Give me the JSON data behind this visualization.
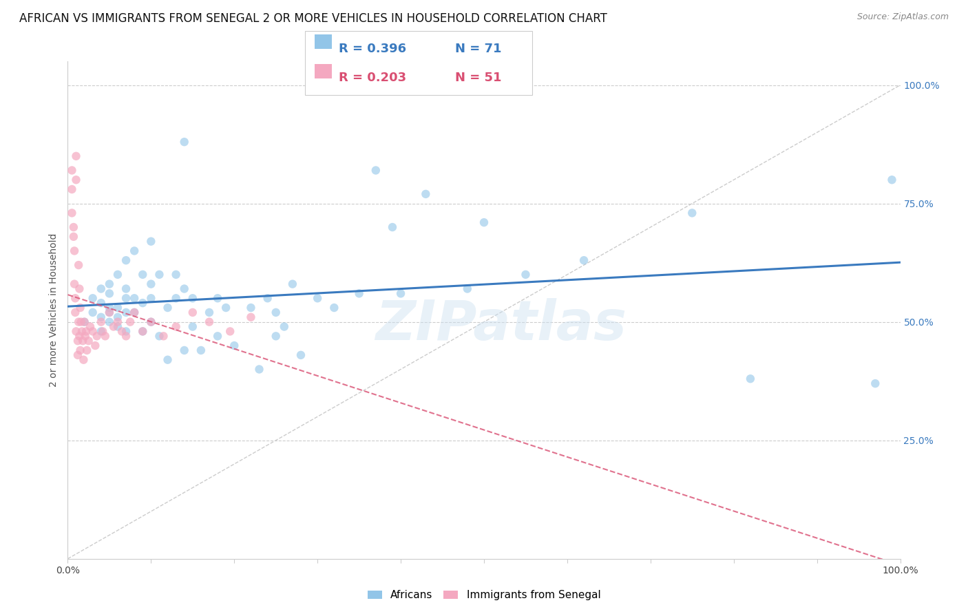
{
  "title": "AFRICAN VS IMMIGRANTS FROM SENEGAL 2 OR MORE VEHICLES IN HOUSEHOLD CORRELATION CHART",
  "source": "Source: ZipAtlas.com",
  "ylabel": "2 or more Vehicles in Household",
  "legend_blue_r": "R = 0.396",
  "legend_blue_n": "N = 71",
  "legend_pink_r": "R = 0.203",
  "legend_pink_n": "N = 51",
  "blue_color": "#92c5e8",
  "pink_color": "#f4a8c0",
  "line_blue_color": "#3a7abf",
  "line_pink_color": "#d94f72",
  "diagonal_color": "#cccccc",
  "watermark": "ZIPatlas",
  "legend_label_blue": "Africans",
  "legend_label_pink": "Immigrants from Senegal",
  "grid_color": "#cccccc",
  "background_color": "#ffffff",
  "title_fontsize": 12,
  "axis_label_fontsize": 10,
  "tick_fontsize": 10,
  "right_tick_color": "#3a7abf",
  "africans_x": [
    0.97,
    0.99,
    0.82,
    0.75,
    0.62,
    0.5,
    0.43,
    0.37,
    0.35,
    0.32,
    0.3,
    0.28,
    0.27,
    0.26,
    0.25,
    0.25,
    0.24,
    0.23,
    0.22,
    0.2,
    0.19,
    0.18,
    0.18,
    0.17,
    0.16,
    0.15,
    0.15,
    0.14,
    0.14,
    0.13,
    0.13,
    0.12,
    0.12,
    0.11,
    0.11,
    0.1,
    0.1,
    0.1,
    0.1,
    0.09,
    0.09,
    0.09,
    0.08,
    0.08,
    0.08,
    0.07,
    0.07,
    0.07,
    0.07,
    0.07,
    0.06,
    0.06,
    0.06,
    0.06,
    0.05,
    0.05,
    0.05,
    0.05,
    0.05,
    0.04,
    0.04,
    0.04,
    0.04,
    0.03,
    0.03,
    0.02,
    0.39,
    0.4,
    0.48,
    0.55,
    0.14
  ],
  "africans_y": [
    0.37,
    0.8,
    0.38,
    0.73,
    0.63,
    0.71,
    0.77,
    0.82,
    0.56,
    0.53,
    0.55,
    0.43,
    0.58,
    0.49,
    0.47,
    0.52,
    0.55,
    0.4,
    0.53,
    0.45,
    0.53,
    0.55,
    0.47,
    0.52,
    0.44,
    0.49,
    0.55,
    0.44,
    0.57,
    0.55,
    0.6,
    0.42,
    0.53,
    0.47,
    0.6,
    0.5,
    0.55,
    0.58,
    0.67,
    0.48,
    0.54,
    0.6,
    0.52,
    0.55,
    0.65,
    0.48,
    0.52,
    0.55,
    0.57,
    0.63,
    0.49,
    0.51,
    0.53,
    0.6,
    0.5,
    0.52,
    0.53,
    0.56,
    0.58,
    0.48,
    0.51,
    0.54,
    0.57,
    0.52,
    0.55,
    0.5,
    0.7,
    0.56,
    0.57,
    0.6,
    0.88
  ],
  "senegal_x": [
    0.005,
    0.005,
    0.005,
    0.007,
    0.007,
    0.008,
    0.008,
    0.009,
    0.009,
    0.01,
    0.01,
    0.01,
    0.012,
    0.012,
    0.013,
    0.013,
    0.014,
    0.014,
    0.015,
    0.015,
    0.016,
    0.017,
    0.018,
    0.019,
    0.02,
    0.021,
    0.022,
    0.023,
    0.025,
    0.027,
    0.03,
    0.033,
    0.035,
    0.04,
    0.042,
    0.045,
    0.05,
    0.055,
    0.06,
    0.065,
    0.07,
    0.075,
    0.08,
    0.09,
    0.1,
    0.115,
    0.13,
    0.15,
    0.17,
    0.195,
    0.22
  ],
  "senegal_y": [
    0.82,
    0.78,
    0.73,
    0.7,
    0.68,
    0.65,
    0.58,
    0.55,
    0.52,
    0.85,
    0.8,
    0.48,
    0.46,
    0.43,
    0.62,
    0.5,
    0.47,
    0.57,
    0.44,
    0.53,
    0.5,
    0.48,
    0.46,
    0.42,
    0.5,
    0.47,
    0.48,
    0.44,
    0.46,
    0.49,
    0.48,
    0.45,
    0.47,
    0.5,
    0.48,
    0.47,
    0.52,
    0.49,
    0.5,
    0.48,
    0.47,
    0.5,
    0.52,
    0.48,
    0.5,
    0.47,
    0.49,
    0.52,
    0.5,
    0.48,
    0.51
  ],
  "xlim": [
    0.0,
    1.0
  ],
  "ylim": [
    0.0,
    1.0
  ]
}
